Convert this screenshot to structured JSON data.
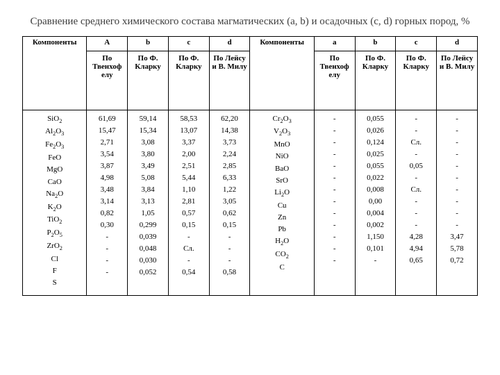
{
  "title": "Сравнение среднего химического состава магматических (a, b) и осадочных (c, d) горных пород, %",
  "headers": {
    "components": "Компоненты",
    "A": "A",
    "b": "b",
    "c": "c",
    "d": "d",
    "a2": "a",
    "b2": "b",
    "c2": "c",
    "d2": "d",
    "tven": "По Твенхоф елу",
    "clark": "По Ф. Кларку",
    "leys": "По Лейсу и В. Милу"
  },
  "left": {
    "components": [
      "SiO₂",
      "Al₂O₃",
      "Fe₂O₃",
      "FeO",
      "MgO",
      "CaO",
      "Na₂O",
      "K₂O",
      "TiO₂",
      "P₂O₅",
      "ZrO₂",
      "Cl",
      "F",
      "S"
    ],
    "A": [
      "61,69",
      "15,47",
      "2,71",
      "3,54",
      "3,87",
      "4,98",
      "3,48",
      "3,14",
      "0,82",
      "0,30",
      "-",
      "-",
      "-",
      "-"
    ],
    "b": [
      "59,14",
      "15,34",
      "3,08",
      "3,80",
      "3,49",
      "5,08",
      "3,84",
      "3,13",
      "1,05",
      "0,299",
      "0,039",
      "0,048",
      "0,030",
      "0,052"
    ],
    "c": [
      "58,53",
      "13,07",
      "3,37",
      "2,00",
      "2,51",
      "5,44",
      "1,10",
      "2,81",
      "0,57",
      "0,15",
      "-",
      "Сл.",
      "-",
      "0,54"
    ],
    "d": [
      "62,20",
      "14,38",
      "3,73",
      "2,24",
      "2,85",
      "6,33",
      "1,22",
      "3,05",
      "0,62",
      "0,15",
      "-",
      "-",
      "-",
      "0,58"
    ]
  },
  "right": {
    "components": [
      "Cr₂O₃",
      "V₂O₃",
      "MnO",
      "NiO",
      "BaO",
      "SrO",
      "Li₂O",
      "Cu",
      "Zn",
      "Pb",
      "H₂O",
      "CO₂",
      "С"
    ],
    "a": [
      "-",
      "-",
      "-",
      "-",
      "-",
      "-",
      "-",
      "-",
      "-",
      "-",
      "-",
      "-",
      "-"
    ],
    "b": [
      "0,055",
      "0,026",
      "0,124",
      "0,025",
      "0,055",
      "0,022",
      "0,008",
      "0,00",
      "0,004",
      "0,002",
      "1,150",
      "0,101",
      "-"
    ],
    "c": [
      "-",
      "-",
      "Сл.",
      "-",
      "0,05",
      "-",
      "Сл.",
      "-",
      "-",
      "-",
      "4,28",
      "4,94",
      "0,65"
    ],
    "d": [
      "-",
      "-",
      "-",
      "-",
      "-",
      "-",
      "-",
      "-",
      "-",
      "-",
      "3,47",
      "5,78",
      "0,72"
    ]
  },
  "style": {
    "title_color": "#3d3d3d",
    "border_color": "#000000",
    "font_family": "Times New Roman",
    "title_fontsize": 15,
    "body_fontsize": 11,
    "background": "#ffffff"
  }
}
